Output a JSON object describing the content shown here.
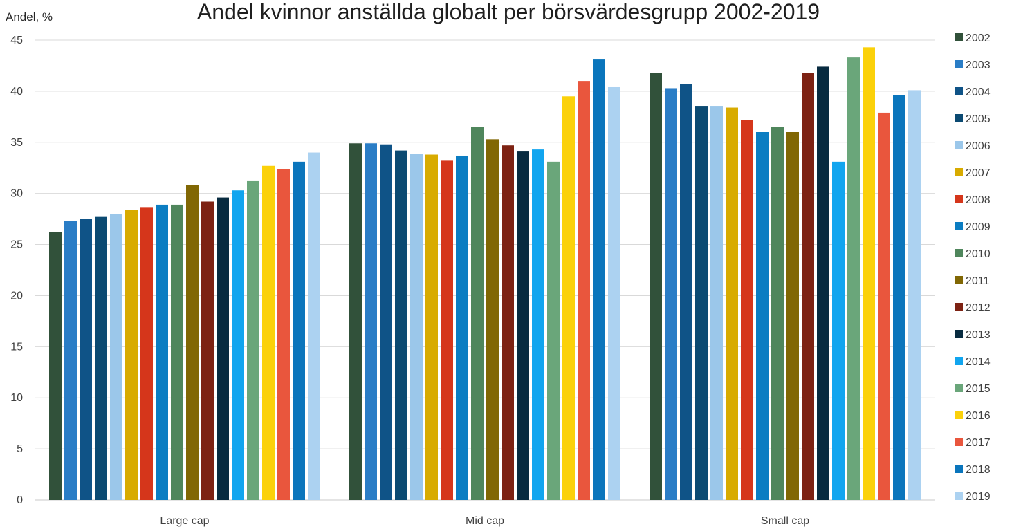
{
  "chart_data": {
    "type": "bar",
    "title": "Andel kvinnor anställda globalt per börsvärdesgrupp 2002-2019",
    "ylabel": "Andel, %",
    "xlabel": "",
    "ylim": [
      0,
      45
    ],
    "yticks": [
      0,
      5,
      10,
      15,
      20,
      25,
      30,
      35,
      40,
      45
    ],
    "grid": true,
    "legend_position": "right",
    "categories": [
      "Large cap",
      "Mid cap",
      "Small cap"
    ],
    "series": [
      {
        "name": "2002",
        "color": "#31513a",
        "values": [
          26.2,
          34.9,
          41.8
        ]
      },
      {
        "name": "2003",
        "color": "#2a7dc6",
        "values": [
          27.3,
          34.9,
          40.3
        ]
      },
      {
        "name": "2004",
        "color": "#0f5387",
        "values": [
          27.5,
          34.8,
          40.7
        ]
      },
      {
        "name": "2005",
        "color": "#0b4a72",
        "values": [
          27.7,
          34.2,
          38.5
        ]
      },
      {
        "name": "2006",
        "color": "#9bc7ea",
        "values": [
          28.0,
          33.9,
          38.5
        ]
      },
      {
        "name": "2007",
        "color": "#d8ab00",
        "values": [
          28.4,
          33.8,
          38.4
        ]
      },
      {
        "name": "2008",
        "color": "#d5361b",
        "values": [
          28.6,
          33.2,
          37.2
        ]
      },
      {
        "name": "2009",
        "color": "#0b7dc2",
        "values": [
          28.9,
          33.7,
          36.0
        ]
      },
      {
        "name": "2010",
        "color": "#4f865c",
        "values": [
          28.9,
          36.5,
          36.5
        ]
      },
      {
        "name": "2011",
        "color": "#816704",
        "values": [
          30.8,
          35.3,
          36.0
        ]
      },
      {
        "name": "2012",
        "color": "#7d2213",
        "values": [
          29.2,
          34.7,
          41.8
        ]
      },
      {
        "name": "2013",
        "color": "#082b40",
        "values": [
          29.6,
          34.1,
          42.4
        ]
      },
      {
        "name": "2014",
        "color": "#11a5ef",
        "values": [
          30.3,
          34.3,
          33.1
        ]
      },
      {
        "name": "2015",
        "color": "#6aa67a",
        "values": [
          31.2,
          33.1,
          43.3
        ]
      },
      {
        "name": "2016",
        "color": "#fbd10a",
        "values": [
          32.7,
          39.5,
          44.3
        ]
      },
      {
        "name": "2017",
        "color": "#e9563d",
        "values": [
          32.4,
          41.0,
          37.9
        ]
      },
      {
        "name": "2018",
        "color": "#0a75bc",
        "values": [
          33.1,
          43.1,
          39.6
        ]
      },
      {
        "name": "2019",
        "color": "#acd2f1",
        "values": [
          34.0,
          40.4,
          40.1
        ]
      }
    ]
  }
}
